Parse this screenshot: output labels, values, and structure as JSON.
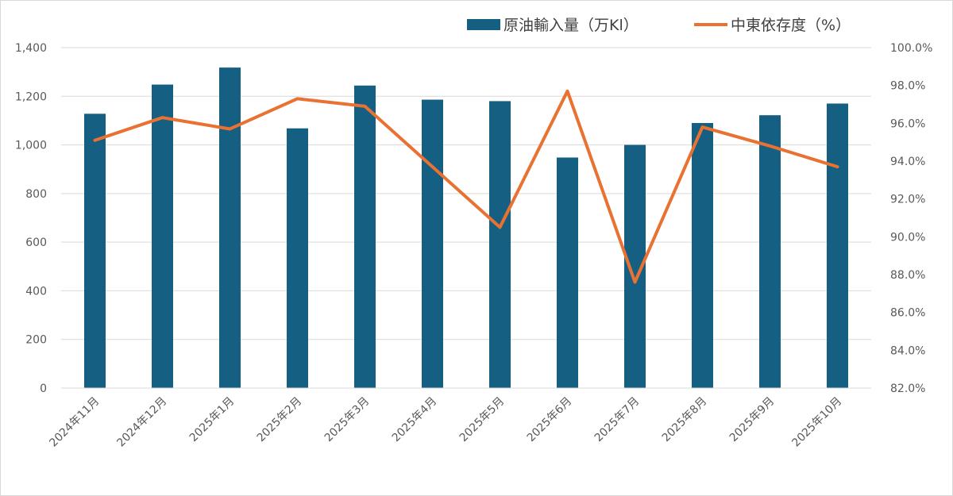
{
  "chart_data": {
    "type": "bar",
    "categories": [
      "2024年11月",
      "2024年12月",
      "2025年1月",
      "2025年2月",
      "2025年3月",
      "2025年4月",
      "2025年5月",
      "2025年6月",
      "2025年7月",
      "2025年8月",
      "2025年9月",
      "2025年10月"
    ],
    "series": [
      {
        "name": "原油輸入量（万Kl）",
        "type": "bar",
        "axis": "left",
        "color": "#156082",
        "values": [
          1128,
          1248,
          1318,
          1068,
          1244,
          1186,
          1180,
          948,
          1000,
          1090,
          1122,
          1170
        ]
      },
      {
        "name": "中東依存度（%）",
        "type": "line",
        "axis": "right",
        "color": "#e97132",
        "values": [
          95.1,
          96.3,
          95.7,
          97.3,
          96.9,
          93.7,
          90.5,
          97.7,
          87.6,
          95.8,
          94.8,
          93.7
        ]
      }
    ],
    "y_left": {
      "min": 0,
      "max": 1400,
      "step": 200,
      "ticks": [
        "0",
        "200",
        "400",
        "600",
        "800",
        "1,000",
        "1,200",
        "1,400"
      ]
    },
    "y_right": {
      "min": 82,
      "max": 100,
      "step": 2,
      "ticks": [
        "82.0%",
        "84.0%",
        "86.0%",
        "88.0%",
        "90.0%",
        "92.0%",
        "94.0%",
        "96.0%",
        "98.0%",
        "100.0%"
      ]
    },
    "grid": true,
    "legend_position": "top-right",
    "title": "",
    "xlabel": "",
    "ylabel": ""
  }
}
